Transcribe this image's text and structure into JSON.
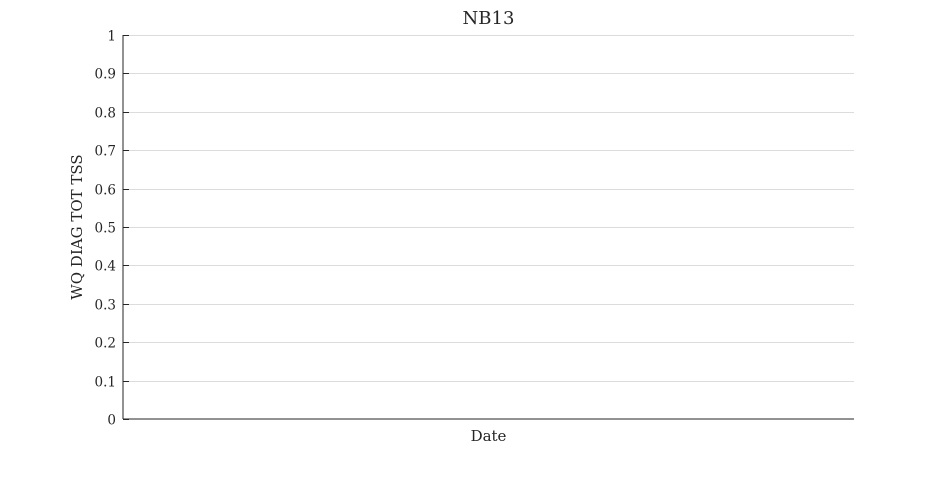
{
  "chart_data": {
    "type": "line",
    "title": "NB13",
    "xlabel": "Date",
    "ylabel": "WQ DIAG TOT TSS",
    "ylim": [
      0,
      1
    ],
    "yticks": [
      0,
      0.1,
      0.2,
      0.3,
      0.4,
      0.5,
      0.6,
      0.7,
      0.8,
      0.9,
      1
    ],
    "ytick_labels": [
      "0",
      "0.1",
      "0.2",
      "0.3",
      "0.4",
      "0.5",
      "0.6",
      "0.7",
      "0.8",
      "0.9",
      "1"
    ],
    "grid": true,
    "legend": "none",
    "series": []
  }
}
